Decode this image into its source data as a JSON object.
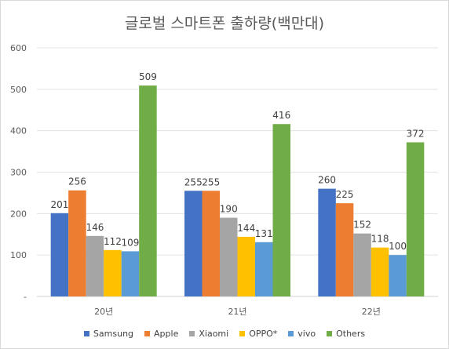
{
  "chart_data": {
    "type": "bar",
    "title": "글로벌 스마트폰 출하량(백만대)",
    "categories": [
      "20년",
      "21년",
      "22년"
    ],
    "series": [
      {
        "name": "Samsung",
        "color": "#4472C4",
        "values": [
          201,
          255,
          260
        ]
      },
      {
        "name": "Apple",
        "color": "#ED7D31",
        "values": [
          256,
          255,
          225
        ]
      },
      {
        "name": "Xiaomi",
        "color": "#A5A5A5",
        "values": [
          146,
          190,
          152
        ]
      },
      {
        "name": "OPPO*",
        "color": "#FFC000",
        "values": [
          112,
          144,
          118
        ]
      },
      {
        "name": "vivo",
        "color": "#5B9BD5",
        "values": [
          109,
          131,
          100
        ]
      },
      {
        "name": "Others",
        "color": "#70AD47",
        "values": [
          509,
          416,
          372
        ]
      }
    ],
    "yticks": [
      "-",
      "100",
      "200",
      "300",
      "400",
      "500",
      "600"
    ],
    "ylim": [
      0,
      600
    ],
    "grid": true,
    "legend": "bottom",
    "data_labels": true
  }
}
